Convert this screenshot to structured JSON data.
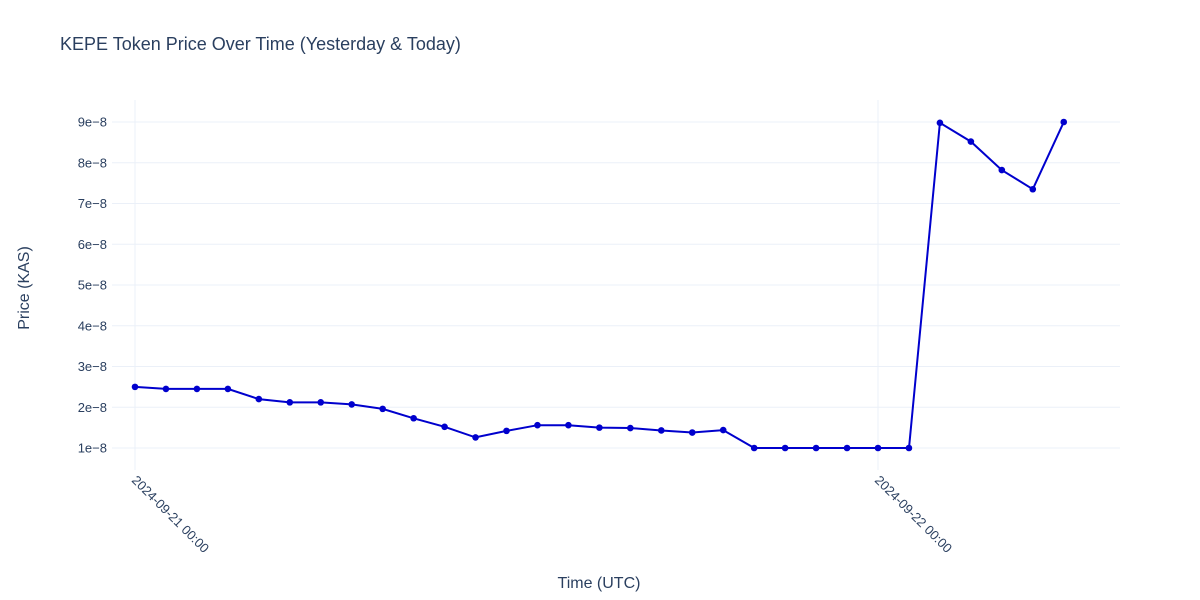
{
  "chart_data": {
    "type": "line",
    "title": "KEPE Token Price Over Time (Yesterday & Today)",
    "xlabel": "Time (UTC)",
    "ylabel": "Price (KAS)",
    "x_ticks": [
      "2024-09-21 00:00",
      "2024-09-22 00:00"
    ],
    "y_ticks": [
      "1e−8",
      "2e−8",
      "3e−8",
      "4e−8",
      "5e−8",
      "6e−8",
      "7e−8",
      "8e−8",
      "9e−8"
    ],
    "y_tick_values": [
      1e-08,
      2e-08,
      3e-08,
      4e-08,
      5e-08,
      6e-08,
      7e-08,
      8e-08,
      9e-08
    ],
    "x_range": [
      "2024-09-21 00:00",
      "2024-09-22 09:30"
    ],
    "ylim": [
      5e-09,
      9.5e-08
    ],
    "grid": true,
    "line_color": "#0000cd",
    "series": [
      {
        "x": [
          "2024-09-21 00:00",
          "2024-09-21 01:00",
          "2024-09-21 02:00",
          "2024-09-21 03:00",
          "2024-09-21 04:00",
          "2024-09-21 05:00",
          "2024-09-21 06:00",
          "2024-09-21 07:00",
          "2024-09-21 08:00",
          "2024-09-21 09:00",
          "2024-09-21 10:00",
          "2024-09-21 11:00",
          "2024-09-21 12:00",
          "2024-09-21 13:00",
          "2024-09-21 14:00",
          "2024-09-21 15:00",
          "2024-09-21 16:00",
          "2024-09-21 17:00",
          "2024-09-21 18:00",
          "2024-09-21 19:00",
          "2024-09-21 20:00",
          "2024-09-21 21:00",
          "2024-09-21 22:00",
          "2024-09-21 23:00",
          "2024-09-22 00:00",
          "2024-09-22 01:00",
          "2024-09-22 02:00",
          "2024-09-22 03:00",
          "2024-09-22 04:00",
          "2024-09-22 05:00",
          "2024-09-22 06:00"
        ],
        "values": [
          2.5e-08,
          2.45e-08,
          2.45e-08,
          2.45e-08,
          2.2e-08,
          2.12e-08,
          2.12e-08,
          2.07e-08,
          1.96e-08,
          1.73e-08,
          1.52e-08,
          1.26e-08,
          1.42e-08,
          1.56e-08,
          1.56e-08,
          1.5e-08,
          1.49e-08,
          1.43e-08,
          1.38e-08,
          1.44e-08,
          1e-08,
          1e-08,
          1e-08,
          1e-08,
          1e-08,
          1e-08,
          8.98e-08,
          8.52e-08,
          7.82e-08,
          7.35e-08,
          9e-08
        ]
      }
    ]
  }
}
